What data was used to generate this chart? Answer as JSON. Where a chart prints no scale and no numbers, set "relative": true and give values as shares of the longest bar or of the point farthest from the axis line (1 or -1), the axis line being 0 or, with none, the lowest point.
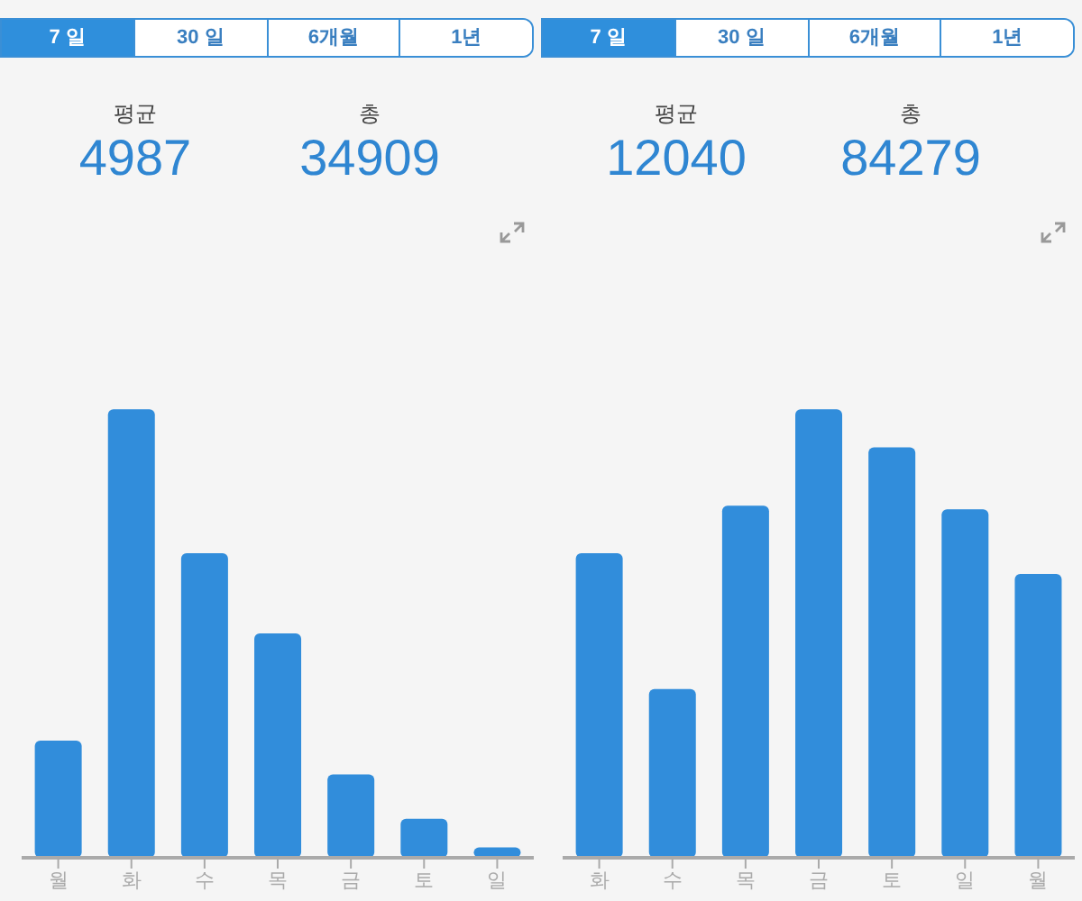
{
  "chart_data": [
    {
      "type": "bar",
      "relative": true,
      "annotations": [
        "7 일",
        "30 일",
        "6개월",
        "1년",
        "평균",
        "4987",
        "총",
        "34909"
      ],
      "categories": [
        "월",
        "화",
        "수",
        "목",
        "금",
        "토",
        "일"
      ],
      "series": [
        {
          "color": "#318ddb",
          "values": [
            0.261,
            1,
            0.679,
            0.5,
            0.186,
            0.087,
            0.023
          ]
        }
      ]
    },
    {
      "type": "bar",
      "relative": true,
      "annotations": [
        "7 일",
        "30 일",
        "6개월",
        "1년",
        "평균",
        "12040",
        "총",
        "84279"
      ],
      "categories": [
        "화",
        "수",
        "목",
        "금",
        "토",
        "일",
        "월"
      ],
      "series": [
        {
          "color": "#318ddb",
          "values": [
            0.679,
            0.376,
            0.785,
            1,
            0.915,
            0.777,
            0.633
          ]
        }
      ]
    }
  ]
}
